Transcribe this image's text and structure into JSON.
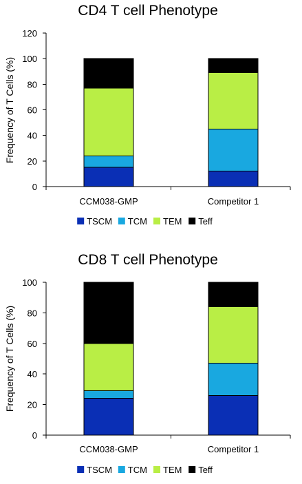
{
  "chart_data": [
    {
      "type": "bar",
      "stacked": true,
      "title": "CD4 T cell Phenotype",
      "ylabel": "Frequency of T Cells (%)",
      "xlabel": "",
      "ylim": [
        0,
        120
      ],
      "yticks": [
        "0",
        "20",
        "40",
        "60",
        "80",
        "100",
        "120"
      ],
      "categories": [
        "CCM038-GMP",
        "Competitor 1"
      ],
      "legend_position": "bottom",
      "series": [
        {
          "name": "TSCM",
          "color": "#0a2fb5",
          "values": [
            15,
            12
          ]
        },
        {
          "name": "TCM",
          "color": "#19a8e0",
          "values": [
            9,
            33
          ]
        },
        {
          "name": "TEM",
          "color": "#b9ee45",
          "values": [
            53,
            44
          ]
        },
        {
          "name": "Teff",
          "color": "#000000",
          "values": [
            23,
            11
          ]
        }
      ]
    },
    {
      "type": "bar",
      "stacked": true,
      "title": "CD8 T cell Phenotype",
      "ylabel": "Frequency of T Cells (%)",
      "xlabel": "",
      "ylim": [
        0,
        100
      ],
      "yticks": [
        "0",
        "20",
        "40",
        "60",
        "80",
        "100"
      ],
      "categories": [
        "CCM038-GMP",
        "Competitor 1"
      ],
      "legend_position": "bottom",
      "series": [
        {
          "name": "TSCM",
          "color": "#0a2fb5",
          "values": [
            24,
            26
          ]
        },
        {
          "name": "TCM",
          "color": "#19a8e0",
          "values": [
            5,
            21
          ]
        },
        {
          "name": "TEM",
          "color": "#b9ee45",
          "values": [
            31,
            37
          ]
        },
        {
          "name": "Teff",
          "color": "#000000",
          "values": [
            40,
            16
          ]
        }
      ]
    }
  ]
}
